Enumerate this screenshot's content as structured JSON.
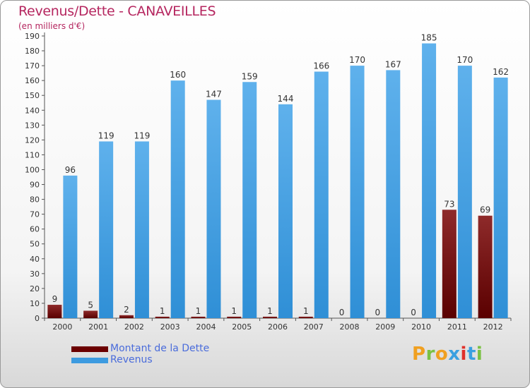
{
  "title": "Revenus/Dette - CANAVEILLES",
  "subtitle": "(en milliers d'€)",
  "brand": "Proxiti",
  "colors": {
    "dette": "#7a1010",
    "revenus": "#4aa3e6",
    "title": "#b5265f",
    "legend_text": "#4a6cdb"
  },
  "legend": [
    {
      "label": "Montant de la Dette",
      "color": "#6b0000"
    },
    {
      "label": "Revenus",
      "color": "#3d9be0"
    }
  ],
  "chart_data": {
    "type": "bar",
    "title": "Revenus/Dette - CANAVEILLES",
    "subtitle": "(en milliers d'€)",
    "categories": [
      "2000",
      "2001",
      "2002",
      "2003",
      "2004",
      "2005",
      "2006",
      "2007",
      "2008",
      "2009",
      "2010",
      "2011",
      "2012"
    ],
    "series": [
      {
        "name": "Montant de la Dette",
        "values": [
          9,
          5,
          2,
          1,
          1,
          1,
          1,
          1,
          0,
          0,
          0,
          73,
          69
        ]
      },
      {
        "name": "Revenus",
        "values": [
          96,
          119,
          119,
          160,
          147,
          159,
          144,
          166,
          170,
          167,
          185,
          170,
          162
        ]
      }
    ],
    "ylim": [
      0,
      190
    ],
    "yticks": [
      0,
      10,
      20,
      30,
      40,
      50,
      60,
      70,
      80,
      90,
      100,
      110,
      120,
      130,
      140,
      150,
      160,
      170,
      180,
      190
    ],
    "grid": false,
    "legend_position": "bottom-left"
  }
}
